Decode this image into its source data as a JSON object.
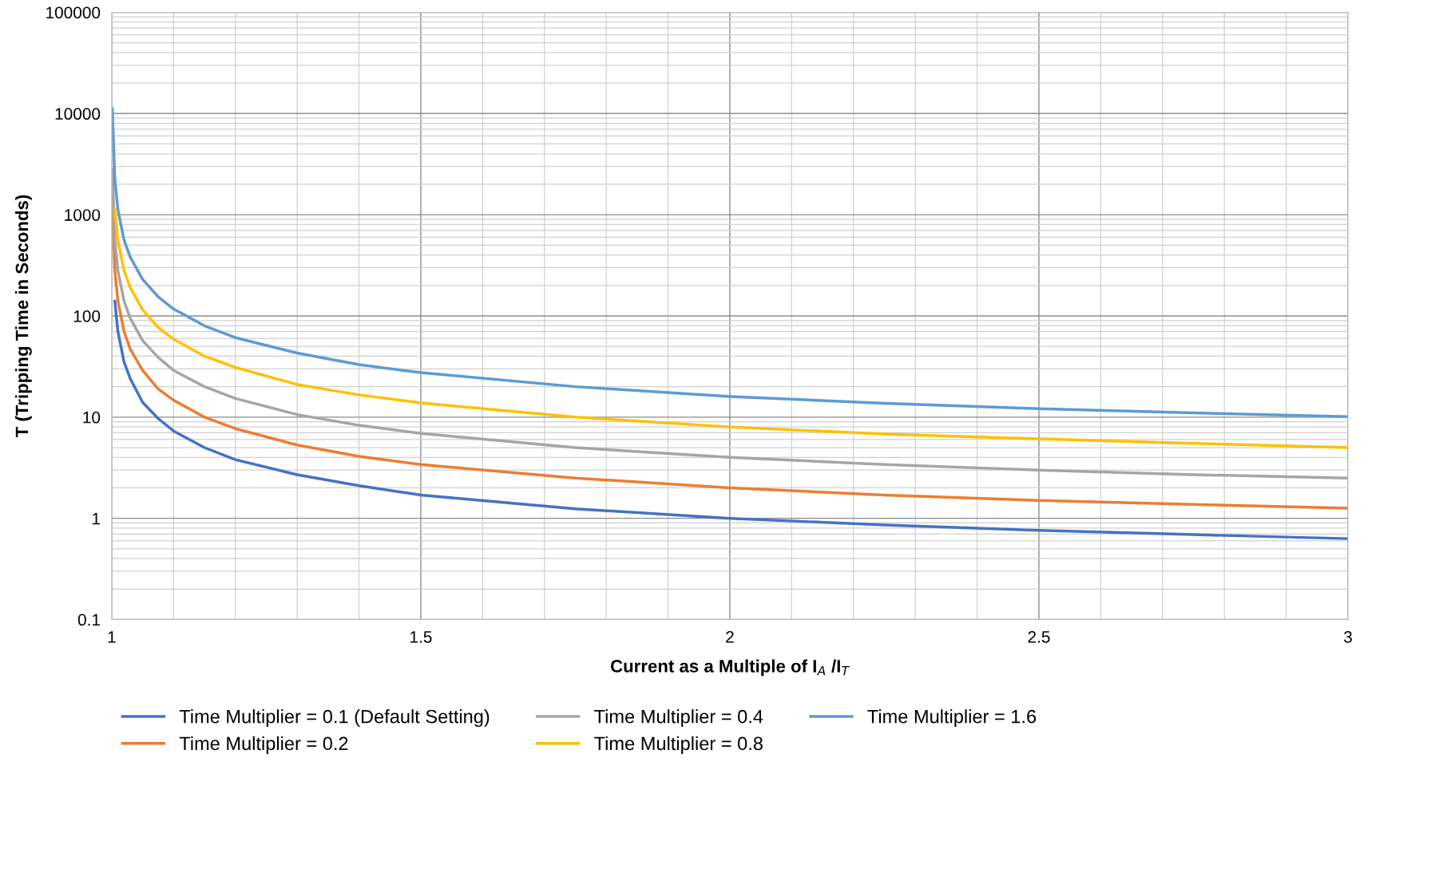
{
  "chart_data": {
    "type": "line",
    "xlabel": "Current as a Multiple of I$_{A}$ /I$_{T}$",
    "ylabel": "T (Tripping Time in Seconds)",
    "x": [
      1.001,
      1.005,
      1.01,
      1.02,
      1.03,
      1.05,
      1.075,
      1.1,
      1.15,
      1.2,
      1.3,
      1.4,
      1.5,
      1.75,
      2,
      2.25,
      2.5,
      2.75,
      3
    ],
    "series": [
      {
        "name": "Time Multiplier = 0.1 (Default Setting)",
        "color": "#4472c4",
        "values": [
          null,
          140,
          70,
          35,
          24,
          14,
          9.7,
          7.3,
          5.0,
          3.8,
          2.7,
          2.1,
          1.7,
          1.24,
          1.0,
          0.86,
          0.76,
          0.69,
          0.63
        ]
      },
      {
        "name": "Time Multiplier = 0.2",
        "color": "#ed7d31",
        "values": [
          1400,
          280,
          140,
          70,
          47,
          29,
          19,
          14.7,
          10,
          7.7,
          5.3,
          4.1,
          3.4,
          2.5,
          2.0,
          1.7,
          1.5,
          1.37,
          1.26
        ]
      },
      {
        "name": "Time Multiplier = 0.4",
        "color": "#a5a5a5",
        "values": [
          2800,
          560,
          280,
          140,
          95,
          57,
          39,
          29,
          20,
          15.3,
          10.6,
          8.3,
          6.9,
          5.0,
          4.0,
          3.4,
          3.0,
          2.7,
          2.5
        ]
      },
      {
        "name": "Time Multiplier = 0.8",
        "color": "#ffc000",
        "values": [
          null,
          1120,
          560,
          280,
          190,
          115,
          77,
          59,
          40,
          31,
          21,
          16.6,
          13.8,
          10,
          8.0,
          6.8,
          6.1,
          5.5,
          5.0
        ]
      },
      {
        "name": "Time Multiplier = 1.6",
        "color": "#5b9bd5",
        "values": [
          11200,
          2240,
          1120,
          560,
          380,
          230,
          155,
          117,
          80,
          61,
          43,
          33,
          27.5,
          20,
          16,
          13.7,
          12.1,
          11,
          10.1
        ]
      }
    ],
    "log": "y",
    "xlim": [
      1,
      3
    ],
    "xticks": [
      1,
      1.5,
      2,
      2.5,
      3
    ],
    "ylim": [
      0.1,
      100000
    ],
    "yticks": [
      0.1,
      1,
      10,
      100,
      1000,
      10000,
      100000
    ],
    "grid": true,
    "legend": "bottom",
    "marker": "none",
    "line_style": "solid"
  }
}
